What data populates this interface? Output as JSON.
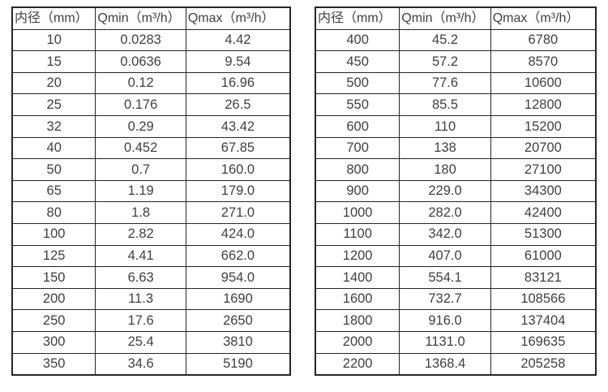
{
  "colors": {
    "background": "#ffffff",
    "border": "#262626",
    "text": "#404040"
  },
  "tables": [
    {
      "name": "small-diameter-flow-table",
      "headers": [
        "内径（mm）",
        "Qmin（m³/h）",
        "Qmax（m³/h）"
      ],
      "rows": [
        [
          "10",
          "0.0283",
          "4.42"
        ],
        [
          "15",
          "0.0636",
          "9.54"
        ],
        [
          "20",
          "0.12",
          "16.96"
        ],
        [
          "25",
          "0.176",
          "26.5"
        ],
        [
          "32",
          "0.29",
          "43.42"
        ],
        [
          "40",
          "0.452",
          "67.85"
        ],
        [
          "50",
          "0.7",
          "160.0"
        ],
        [
          "65",
          "1.19",
          "179.0"
        ],
        [
          "80",
          "1.8",
          "271.0"
        ],
        [
          "100",
          "2.82",
          "424.0"
        ],
        [
          "125",
          "4.41",
          "662.0"
        ],
        [
          "150",
          "6.63",
          "954.0"
        ],
        [
          "200",
          "11.3",
          "1690"
        ],
        [
          "250",
          "17.6",
          "2650"
        ],
        [
          "300",
          "25.4",
          "3810"
        ],
        [
          "350",
          "34.6",
          "5190"
        ]
      ]
    },
    {
      "name": "large-diameter-flow-table",
      "headers": [
        "内径（mm）",
        "Qmin（m³/h）",
        "Qmax（m³/h）"
      ],
      "rows": [
        [
          "400",
          "45.2",
          "6780"
        ],
        [
          "450",
          "57.2",
          "8570"
        ],
        [
          "500",
          "77.6",
          "10600"
        ],
        [
          "550",
          "85.5",
          "12800"
        ],
        [
          "600",
          "110",
          "15200"
        ],
        [
          "700",
          "138",
          "20700"
        ],
        [
          "800",
          "180",
          "27100"
        ],
        [
          "900",
          "229.0",
          "34300"
        ],
        [
          "1000",
          "282.0",
          "42400"
        ],
        [
          "1100",
          "342.0",
          "51300"
        ],
        [
          "1200",
          "407.0",
          "61000"
        ],
        [
          "1400",
          "554.1",
          "83121"
        ],
        [
          "1600",
          "732.7",
          "108566"
        ],
        [
          "1800",
          "916.0",
          "137404"
        ],
        [
          "2000",
          "1131.0",
          "169635"
        ],
        [
          "2200",
          "1368.4",
          "205258"
        ]
      ]
    }
  ]
}
